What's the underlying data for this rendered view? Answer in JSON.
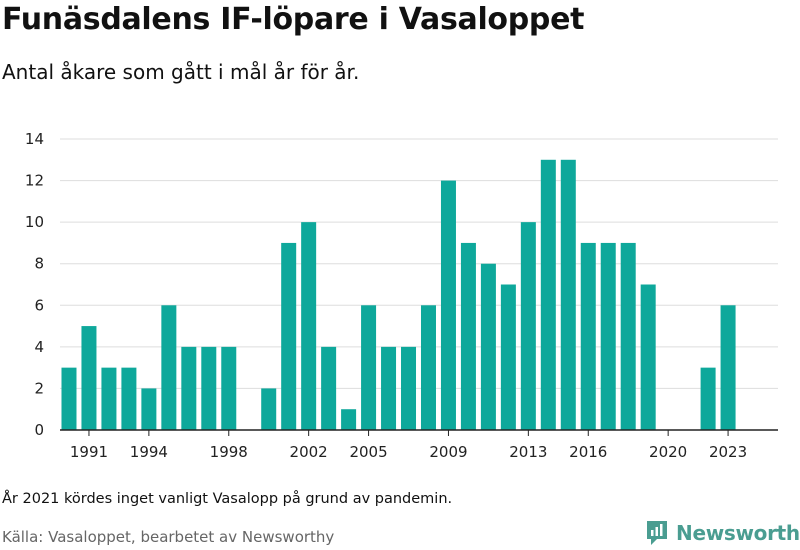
{
  "header": {
    "title": "Funäsdalens IF-löpare i Vasaloppet",
    "subtitle": "Antal åkare som gått i mål år för år."
  },
  "footer": {
    "footnote": "År 2021 kördes inget vanligt Vasalopp på grund av pandemin.",
    "source": "Källa: Vasaloppet, bearbetet av Newsworthy",
    "brand": "Newsworthy",
    "brand_icon": "chart-logo-icon"
  },
  "colors": {
    "bar": "#0ea89b",
    "grid": "#dddddd",
    "axis": "#222222",
    "brand": "#4a9d91"
  },
  "chart_data": {
    "type": "bar",
    "title": "Funäsdalens IF-löpare i Vasaloppet",
    "subtitle": "Antal åkare som gått i mål år för år.",
    "xlabel": "",
    "ylabel": "",
    "ylim": [
      0,
      14
    ],
    "yticks": [
      0,
      2,
      4,
      6,
      8,
      10,
      12,
      14
    ],
    "xticks": [
      1991,
      1994,
      1998,
      2002,
      2005,
      2009,
      2013,
      2016,
      2020,
      2023
    ],
    "grid": true,
    "legend": "none",
    "x": [
      1990,
      1991,
      1992,
      1993,
      1994,
      1995,
      1996,
      1997,
      1998,
      2000,
      2001,
      2002,
      2003,
      2004,
      2005,
      2006,
      2007,
      2008,
      2009,
      2010,
      2011,
      2012,
      2013,
      2014,
      2015,
      2016,
      2017,
      2018,
      2019,
      2022,
      2023
    ],
    "values": [
      3,
      5,
      3,
      3,
      2,
      6,
      4,
      4,
      4,
      2,
      9,
      10,
      4,
      1,
      6,
      4,
      4,
      6,
      12,
      9,
      8,
      7,
      10,
      13,
      13,
      9,
      9,
      9,
      7,
      3,
      6
    ]
  }
}
